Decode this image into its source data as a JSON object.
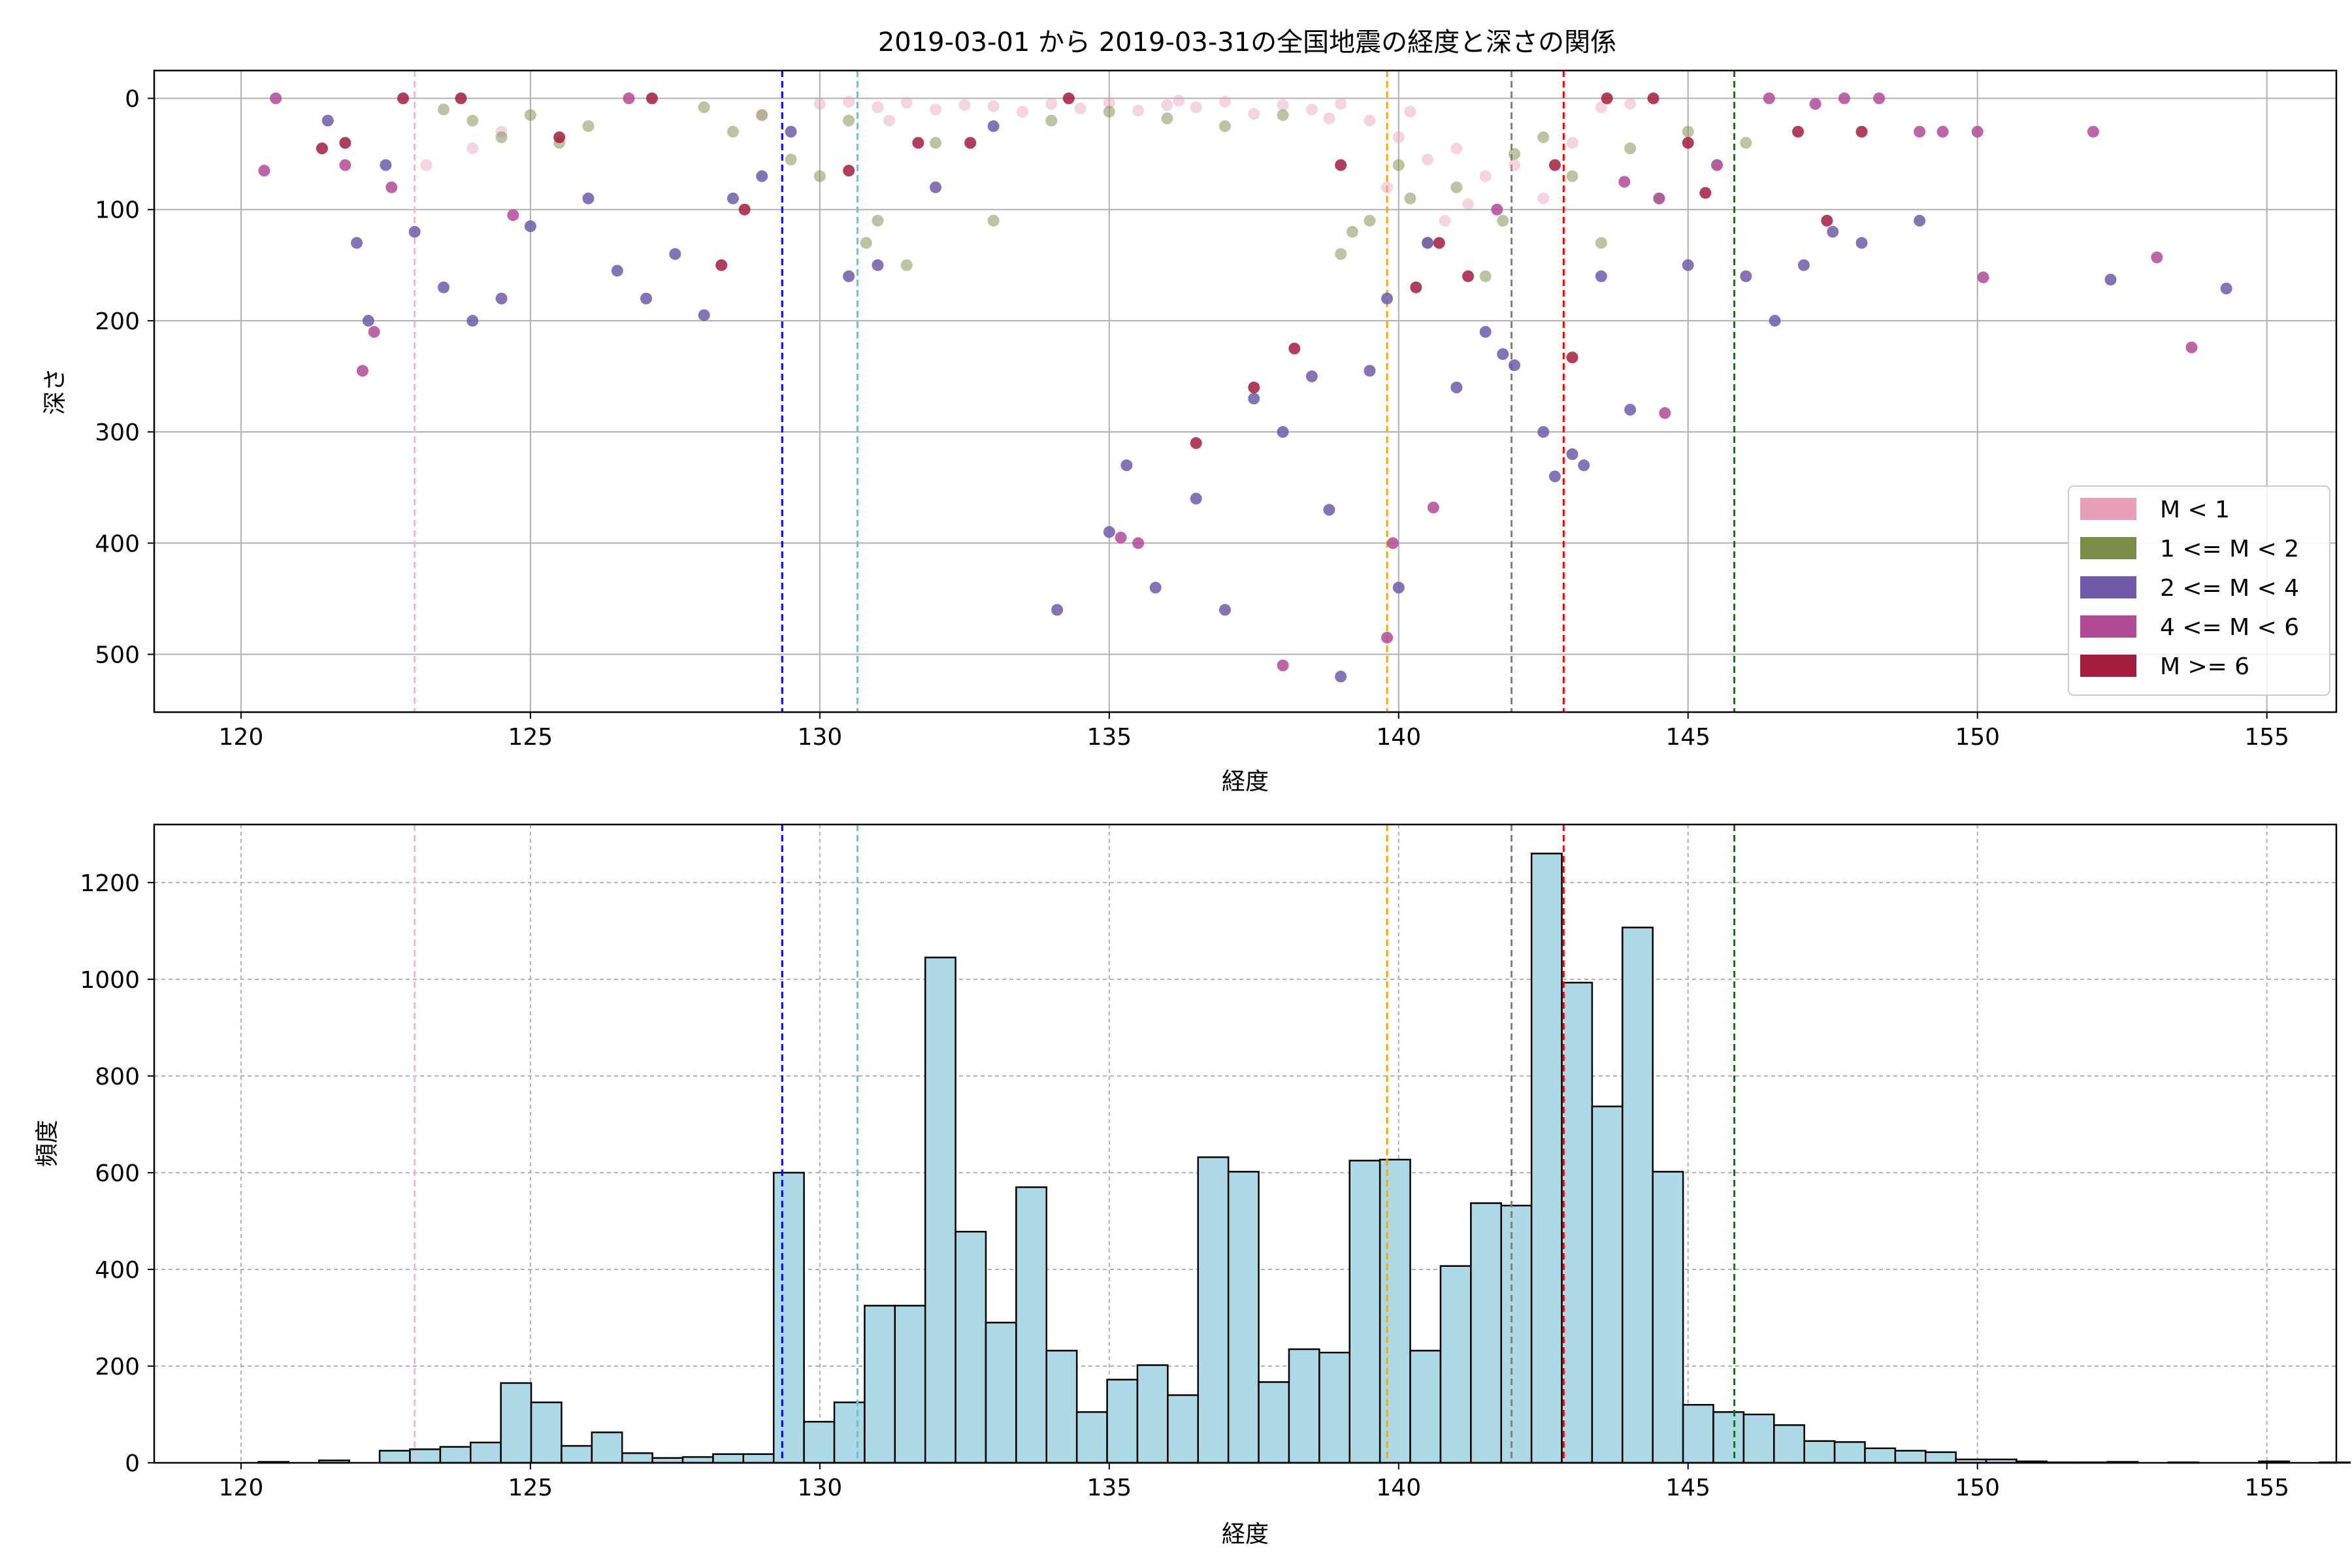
{
  "chart_data": [
    {
      "type": "scatter",
      "title": "2019-03-01 から 2019-03-31の全国地震の経度と深さの関係",
      "xlabel": "経度",
      "ylabel": "深さ",
      "xlim": [
        118.5,
        156.2
      ],
      "ylim": [
        552,
        -25
      ],
      "y_inverted": true,
      "xticks": [
        120,
        125,
        130,
        135,
        140,
        145,
        150,
        155
      ],
      "yticks": [
        0,
        100,
        200,
        300,
        400,
        500
      ],
      "grid": true,
      "legend_position": "lower-right",
      "legend": [
        {
          "label": "M < 1",
          "color": "#e7a0b8"
        },
        {
          "label": "1 <= M < 2",
          "color": "#7a8c46"
        },
        {
          "label": "2 <= M < 4",
          "color": "#6e5aa8"
        },
        {
          "label": "4 <= M < 6",
          "color": "#b24a98"
        },
        {
          "label": "M >= 6",
          "color": "#a31c3e"
        }
      ],
      "series": [
        {
          "name": "M < 1",
          "color": "#e7a0b8",
          "points": [
            [
              130,
              5
            ],
            [
              130.5,
              3
            ],
            [
              131,
              8
            ],
            [
              131.5,
              4
            ],
            [
              132,
              10
            ],
            [
              132.5,
              6
            ],
            [
              133,
              7
            ],
            [
              133.5,
              12
            ],
            [
              134,
              5
            ],
            [
              134.5,
              9
            ],
            [
              135,
              4
            ],
            [
              135.5,
              11
            ],
            [
              136,
              6
            ],
            [
              136.5,
              8
            ],
            [
              137,
              3
            ],
            [
              137.5,
              14
            ],
            [
              138,
              6
            ],
            [
              138.5,
              10
            ],
            [
              139,
              5
            ],
            [
              139.5,
              20
            ],
            [
              140,
              35
            ],
            [
              140.5,
              55
            ],
            [
              141,
              45
            ],
            [
              141.5,
              70
            ],
            [
              142,
              60
            ],
            [
              142.5,
              90
            ],
            [
              143,
              40
            ],
            [
              139.8,
              80
            ],
            [
              140.8,
              110
            ],
            [
              141.2,
              95
            ],
            [
              123.2,
              60
            ],
            [
              124,
              45
            ],
            [
              124.5,
              30
            ],
            [
              131.2,
              20
            ],
            [
              129,
              15
            ],
            [
              136.2,
              2
            ],
            [
              138.8,
              18
            ],
            [
              140.2,
              12
            ],
            [
              143.5,
              8
            ],
            [
              144,
              5
            ]
          ]
        },
        {
          "name": "1 <= M < 2",
          "color": "#7a8c46",
          "points": [
            [
              123.5,
              10
            ],
            [
              124,
              20
            ],
            [
              124.5,
              35
            ],
            [
              125,
              15
            ],
            [
              125.5,
              40
            ],
            [
              126,
              25
            ],
            [
              128,
              8
            ],
            [
              128.5,
              30
            ],
            [
              129,
              15
            ],
            [
              129.5,
              55
            ],
            [
              130,
              70
            ],
            [
              130.5,
              20
            ],
            [
              131,
              110
            ],
            [
              131.5,
              150
            ],
            [
              132,
              40
            ],
            [
              133,
              110
            ],
            [
              134,
              20
            ],
            [
              135,
              12
            ],
            [
              136,
              18
            ],
            [
              137,
              25
            ],
            [
              138,
              15
            ],
            [
              139,
              140
            ],
            [
              139.5,
              110
            ],
            [
              140,
              60
            ],
            [
              140.5,
              130
            ],
            [
              141,
              80
            ],
            [
              141.5,
              160
            ],
            [
              142,
              50
            ],
            [
              142.5,
              35
            ],
            [
              143,
              70
            ],
            [
              143.5,
              130
            ],
            [
              144,
              45
            ],
            [
              144.5,
              90
            ],
            [
              145,
              30
            ],
            [
              145.5,
              60
            ],
            [
              146,
              40
            ],
            [
              139.2,
              120
            ],
            [
              140.2,
              90
            ],
            [
              141.8,
              110
            ],
            [
              130.8,
              130
            ]
          ]
        },
        {
          "name": "2 <= M < 4",
          "color": "#6e5aa8",
          "points": [
            [
              121.5,
              20
            ],
            [
              122,
              130
            ],
            [
              122.2,
              200
            ],
            [
              122.5,
              60
            ],
            [
              123,
              120
            ],
            [
              123.5,
              170
            ],
            [
              124,
              200
            ],
            [
              124.5,
              180
            ],
            [
              125,
              115
            ],
            [
              126,
              90
            ],
            [
              126.5,
              155
            ],
            [
              127,
              180
            ],
            [
              127.5,
              140
            ],
            [
              128,
              195
            ],
            [
              128.5,
              90
            ],
            [
              129,
              70
            ],
            [
              129.5,
              30
            ],
            [
              130.5,
              160
            ],
            [
              131,
              150
            ],
            [
              132,
              80
            ],
            [
              133,
              25
            ],
            [
              134.1,
              460
            ],
            [
              135,
              390
            ],
            [
              135.3,
              330
            ],
            [
              135.8,
              440
            ],
            [
              136.5,
              360
            ],
            [
              137,
              460
            ],
            [
              137.5,
              270
            ],
            [
              138,
              300
            ],
            [
              138.5,
              250
            ],
            [
              138.8,
              370
            ],
            [
              139,
              520
            ],
            [
              139.5,
              245
            ],
            [
              139.8,
              180
            ],
            [
              140,
              440
            ],
            [
              140.5,
              130
            ],
            [
              141,
              260
            ],
            [
              141.5,
              210
            ],
            [
              142,
              240
            ],
            [
              142.5,
              300
            ],
            [
              143,
              320
            ],
            [
              143.5,
              160
            ],
            [
              144,
              280
            ],
            [
              145,
              150
            ],
            [
              146,
              160
            ],
            [
              146.5,
              200
            ],
            [
              147,
              150
            ],
            [
              147.5,
              120
            ],
            [
              148,
              130
            ],
            [
              149,
              110
            ],
            [
              152.3,
              163
            ],
            [
              154.3,
              171
            ],
            [
              143.2,
              330
            ],
            [
              142.7,
              340
            ],
            [
              141.8,
              230
            ]
          ]
        },
        {
          "name": "4 <= M < 6",
          "color": "#b24a98",
          "points": [
            [
              120.4,
              65
            ],
            [
              120.6,
              0
            ],
            [
              121.8,
              60
            ],
            [
              122.1,
              245
            ],
            [
              122.3,
              210
            ],
            [
              122.6,
              80
            ],
            [
              124.7,
              105
            ],
            [
              126.7,
              0
            ],
            [
              135.2,
              395
            ],
            [
              135.5,
              400
            ],
            [
              139.8,
              485
            ],
            [
              139.9,
              400
            ],
            [
              140.6,
              368
            ],
            [
              143.9,
              75
            ],
            [
              144.5,
              90
            ],
            [
              145.5,
              60
            ],
            [
              146.4,
              0
            ],
            [
              147.2,
              5
            ],
            [
              147.7,
              0
            ],
            [
              148.3,
              0
            ],
            [
              149,
              30
            ],
            [
              149.4,
              30
            ],
            [
              150,
              30
            ],
            [
              150.1,
              161
            ],
            [
              152,
              30
            ],
            [
              153.1,
              143
            ],
            [
              153.7,
              224
            ],
            [
              144.6,
              283
            ],
            [
              138,
              510
            ],
            [
              141.7,
              100
            ]
          ]
        },
        {
          "name": "M >= 6",
          "color": "#a31c3e",
          "points": [
            [
              121.4,
              45
            ],
            [
              121.8,
              40
            ],
            [
              122.8,
              0
            ],
            [
              123.8,
              0
            ],
            [
              125.5,
              35
            ],
            [
              127.1,
              0
            ],
            [
              128.7,
              100
            ],
            [
              130.5,
              65
            ],
            [
              131.7,
              40
            ],
            [
              132.6,
              40
            ],
            [
              134.3,
              0
            ],
            [
              136.5,
              310
            ],
            [
              137.5,
              260
            ],
            [
              138.2,
              225
            ],
            [
              139,
              60
            ],
            [
              140.7,
              130
            ],
            [
              141.2,
              160
            ],
            [
              142.7,
              60
            ],
            [
              143,
              233
            ],
            [
              143.6,
              0
            ],
            [
              144.4,
              0
            ],
            [
              145,
              40
            ],
            [
              145.3,
              85
            ],
            [
              146.9,
              30
            ],
            [
              147.4,
              110
            ],
            [
              148,
              30
            ],
            [
              128.3,
              150
            ],
            [
              140.3,
              170
            ]
          ]
        }
      ],
      "vlines": [
        {
          "x": 123.0,
          "color": "#ffb6c1"
        },
        {
          "x": 129.35,
          "color": "#0000ff"
        },
        {
          "x": 130.65,
          "color": "#5bc8dc"
        },
        {
          "x": 139.8,
          "color": "#ffa500"
        },
        {
          "x": 141.95,
          "color": "#808080"
        },
        {
          "x": 142.85,
          "color": "#ff0000"
        },
        {
          "x": 145.8,
          "color": "#008000"
        }
      ]
    },
    {
      "type": "bar",
      "subtype": "histogram",
      "title": "",
      "xlabel": "経度",
      "ylabel": "頻度",
      "xlim": [
        118.5,
        156.2
      ],
      "ylim": [
        0,
        1320
      ],
      "xticks": [
        120,
        125,
        130,
        135,
        140,
        145,
        150,
        155
      ],
      "yticks": [
        0,
        200,
        400,
        600,
        800,
        1000,
        1200
      ],
      "grid": true,
      "bar_color": "#add8e6",
      "bin_start": 120.3,
      "bin_width": 0.5237,
      "values": [
        2,
        0,
        5,
        0,
        25,
        28,
        33,
        42,
        165,
        125,
        35,
        63,
        20,
        10,
        12,
        18,
        18,
        600,
        85,
        125,
        325,
        325,
        1045,
        478,
        290,
        570,
        232,
        105,
        172,
        202,
        140,
        632,
        602,
        167,
        235,
        228,
        625,
        627,
        232,
        407,
        537,
        532,
        1260,
        993,
        737,
        1107,
        602,
        120,
        105,
        100,
        78,
        45,
        43,
        30,
        25,
        22,
        7,
        7,
        3,
        1,
        1,
        2,
        0,
        1,
        0,
        0,
        3,
        0,
        1,
        0,
        1,
        0
      ]
    }
  ]
}
